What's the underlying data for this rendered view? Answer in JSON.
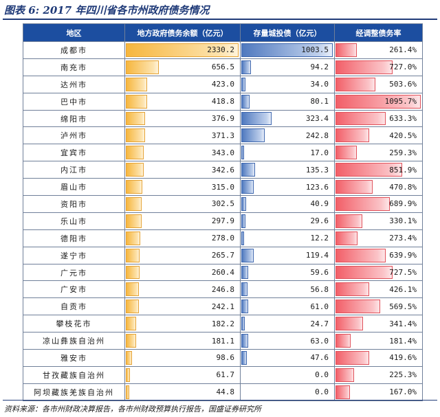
{
  "title": "图表 6:  2017 年四川省各市州政府债务情况",
  "headers": {
    "region": "地区",
    "debt": "地方政府债务余额（亿元）",
    "invest": "存量城投债（亿元）",
    "ratio": "经调整债务率"
  },
  "colors": {
    "header_bg": "#1c4ea0",
    "debt_bar": "#f6b63e",
    "invest_bar": "#4f79bf",
    "ratio_bar": "#f25f68"
  },
  "rows": [
    {
      "region": "成都市",
      "debt": 2330.2,
      "invest": 1003.5,
      "ratio": 261.4,
      "debt_label": "2330.2",
      "invest_label": "1003.5",
      "ratio_label": "261.4%"
    },
    {
      "region": "南充市",
      "debt": 656.5,
      "invest": 94.2,
      "ratio": 727.0,
      "debt_label": "656.5",
      "invest_label": "94.2",
      "ratio_label": "727.0%"
    },
    {
      "region": "达州市",
      "debt": 423.0,
      "invest": 34.0,
      "ratio": 503.6,
      "debt_label": "423.0",
      "invest_label": "34.0",
      "ratio_label": "503.6%"
    },
    {
      "region": "巴中市",
      "debt": 418.8,
      "invest": 80.1,
      "ratio": 1095.7,
      "debt_label": "418.8",
      "invest_label": "80.1",
      "ratio_label": "1095.7%"
    },
    {
      "region": "绵阳市",
      "debt": 376.9,
      "invest": 323.4,
      "ratio": 633.3,
      "debt_label": "376.9",
      "invest_label": "323.4",
      "ratio_label": "633.3%"
    },
    {
      "region": "泸州市",
      "debt": 371.3,
      "invest": 242.8,
      "ratio": 420.5,
      "debt_label": "371.3",
      "invest_label": "242.8",
      "ratio_label": "420.5%"
    },
    {
      "region": "宜宾市",
      "debt": 343.0,
      "invest": 17.0,
      "ratio": 259.3,
      "debt_label": "343.0",
      "invest_label": "17.0",
      "ratio_label": "259.3%"
    },
    {
      "region": "内江市",
      "debt": 342.6,
      "invest": 135.3,
      "ratio": 851.9,
      "debt_label": "342.6",
      "invest_label": "135.3",
      "ratio_label": "851.9%"
    },
    {
      "region": "眉山市",
      "debt": 315.0,
      "invest": 123.6,
      "ratio": 470.8,
      "debt_label": "315.0",
      "invest_label": "123.6",
      "ratio_label": "470.8%"
    },
    {
      "region": "资阳市",
      "debt": 302.5,
      "invest": 40.9,
      "ratio": 689.9,
      "debt_label": "302.5",
      "invest_label": "40.9",
      "ratio_label": "689.9%"
    },
    {
      "region": "乐山市",
      "debt": 297.9,
      "invest": 29.6,
      "ratio": 330.1,
      "debt_label": "297.9",
      "invest_label": "29.6",
      "ratio_label": "330.1%"
    },
    {
      "region": "德阳市",
      "debt": 278.0,
      "invest": 12.2,
      "ratio": 273.4,
      "debt_label": "278.0",
      "invest_label": "12.2",
      "ratio_label": "273.4%"
    },
    {
      "region": "遂宁市",
      "debt": 265.7,
      "invest": 119.4,
      "ratio": 639.9,
      "debt_label": "265.7",
      "invest_label": "119.4",
      "ratio_label": "639.9%"
    },
    {
      "region": "广元市",
      "debt": 260.4,
      "invest": 59.6,
      "ratio": 727.5,
      "debt_label": "260.4",
      "invest_label": "59.6",
      "ratio_label": "727.5%"
    },
    {
      "region": "广安市",
      "debt": 246.8,
      "invest": 56.8,
      "ratio": 426.1,
      "debt_label": "246.8",
      "invest_label": "56.8",
      "ratio_label": "426.1%"
    },
    {
      "region": "自贡市",
      "debt": 242.1,
      "invest": 61.0,
      "ratio": 569.5,
      "debt_label": "242.1",
      "invest_label": "61.0",
      "ratio_label": "569.5%"
    },
    {
      "region": "攀枝花市",
      "debt": 182.2,
      "invest": 24.7,
      "ratio": 341.4,
      "debt_label": "182.2",
      "invest_label": "24.7",
      "ratio_label": "341.4%"
    },
    {
      "region": "凉山彝族自治州",
      "debt": 181.1,
      "invest": 63.0,
      "ratio": 181.4,
      "debt_label": "181.1",
      "invest_label": "63.0",
      "ratio_label": "181.4%"
    },
    {
      "region": "雅安市",
      "debt": 98.6,
      "invest": 47.6,
      "ratio": 419.6,
      "debt_label": "98.6",
      "invest_label": "47.6",
      "ratio_label": "419.6%"
    },
    {
      "region": "甘孜藏族自治州",
      "debt": 61.7,
      "invest": 0.0,
      "ratio": 225.3,
      "debt_label": "61.7",
      "invest_label": "0.0",
      "ratio_label": "225.3%"
    },
    {
      "region": "阿坝藏族羌族自治州",
      "debt": 44.8,
      "invest": 0.0,
      "ratio": 167.0,
      "debt_label": "44.8",
      "invest_label": "0.0",
      "ratio_label": "167.0%"
    }
  ],
  "source": "资料来源：各市州财政决算报告，各市州财政预算执行报告，国盛证券研究所"
}
